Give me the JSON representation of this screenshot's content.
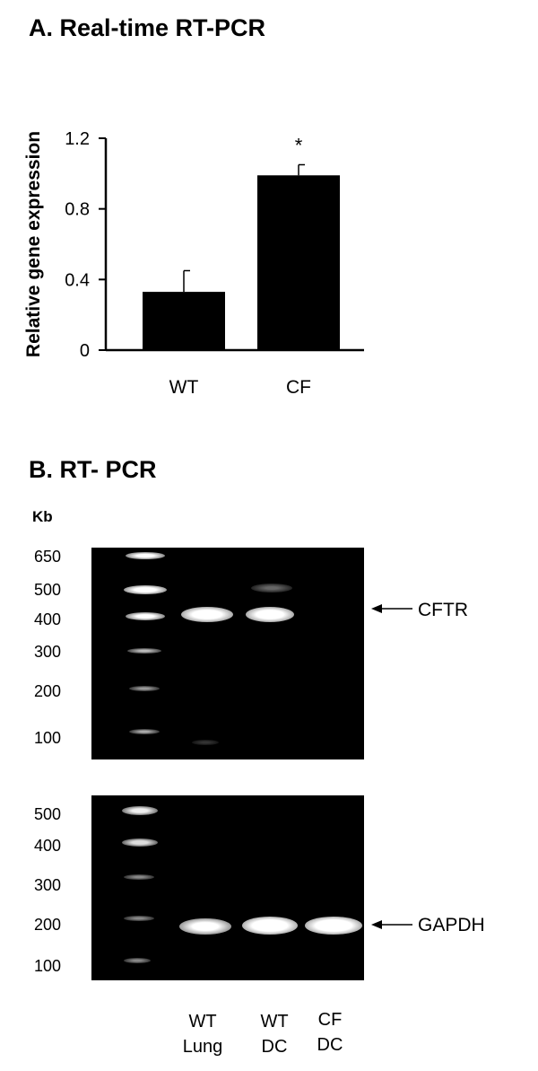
{
  "panel_a": {
    "title": "A. Real-time RT-PCR"
  },
  "chart_data": {
    "type": "bar",
    "categories": [
      "WT",
      "CF"
    ],
    "values": [
      0.33,
      0.99
    ],
    "errors": [
      0.12,
      0.06
    ],
    "significance": [
      "",
      "*"
    ],
    "ylabel": "Relative gene expression",
    "xlabel": "",
    "ylim": [
      0,
      1.2
    ],
    "yticks": [
      0,
      0.4,
      0.8,
      1.2
    ],
    "ytick_labels": [
      "0",
      "0.4",
      "0.8",
      "1.2"
    ],
    "bar_color": "#000000",
    "grid": false
  },
  "panel_b": {
    "title": "B. RT- PCR",
    "unit_label": "Kb",
    "gel_top": {
      "markers": [
        "650",
        "500",
        "400",
        "300",
        "200",
        "100"
      ],
      "target_label": "CFTR"
    },
    "gel_bottom": {
      "markers": [
        "500",
        "400",
        "300",
        "200",
        "100"
      ],
      "target_label": "GAPDH"
    },
    "lanes": [
      {
        "line1": "WT",
        "line2": "Lung"
      },
      {
        "line1": "WT",
        "line2": "DC"
      },
      {
        "line1": "CF",
        "line2": "DC"
      }
    ]
  }
}
